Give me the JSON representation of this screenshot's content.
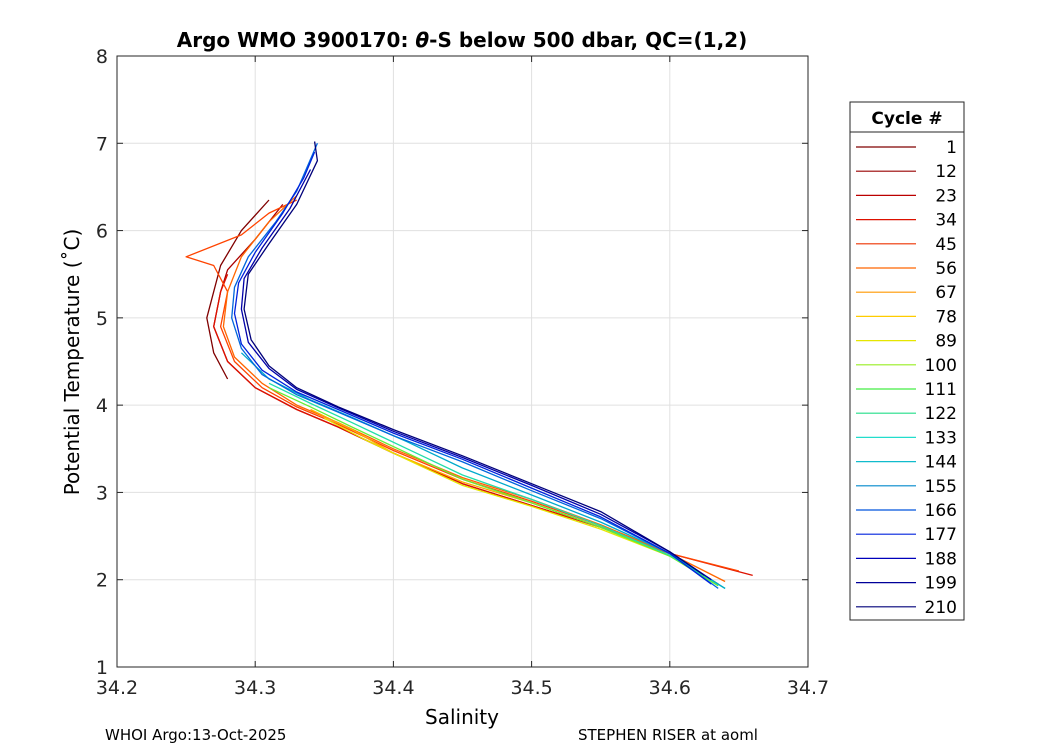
{
  "chart_data": {
    "type": "line",
    "title_prefix": "Argo WMO 3900170: ",
    "title_theta": "θ",
    "title_suffix": "-S below 500 dbar,  QC=(1,2)",
    "xlabel": "Salinity",
    "ylabel": "Potential Temperature (˚C)",
    "xlim": [
      34.2,
      34.7
    ],
    "ylim": [
      1,
      8
    ],
    "xticks": [
      "34.2",
      "34.3",
      "34.4",
      "34.5",
      "34.6",
      "34.7"
    ],
    "yticks": [
      "1",
      "2",
      "3",
      "4",
      "5",
      "6",
      "7",
      "8"
    ],
    "grid": true,
    "legend_placement": "right",
    "legend_title": "Cycle #",
    "legend": [
      {
        "label": "1",
        "color": "#800000"
      },
      {
        "label": "12",
        "color": "#990000"
      },
      {
        "label": "23",
        "color": "#bb0000"
      },
      {
        "label": "34",
        "color": "#dd1100"
      },
      {
        "label": "45",
        "color": "#ee3300"
      },
      {
        "label": "56",
        "color": "#ff6600"
      },
      {
        "label": "67",
        "color": "#ff9900"
      },
      {
        "label": "78",
        "color": "#ffcc00"
      },
      {
        "label": "89",
        "color": "#e6e600"
      },
      {
        "label": "100",
        "color": "#99ee22"
      },
      {
        "label": "111",
        "color": "#44ee44"
      },
      {
        "label": "122",
        "color": "#22dd88"
      },
      {
        "label": "133",
        "color": "#22ddcc"
      },
      {
        "label": "144",
        "color": "#11bbcc"
      },
      {
        "label": "155",
        "color": "#0088cc"
      },
      {
        "label": "166",
        "color": "#0055dd"
      },
      {
        "label": "177",
        "color": "#0022dd"
      },
      {
        "label": "188",
        "color": "#0000bb"
      },
      {
        "label": "199",
        "color": "#000099"
      },
      {
        "label": "210",
        "color": "#00007a"
      }
    ],
    "series": [
      {
        "color": "#800000",
        "points": [
          [
            34.28,
            4.3
          ],
          [
            34.27,
            4.6
          ],
          [
            34.265,
            5.0
          ],
          [
            34.27,
            5.3
          ],
          [
            34.275,
            5.6
          ],
          [
            34.29,
            6.0
          ],
          [
            34.31,
            6.35
          ]
        ]
      },
      {
        "color": "#aa0000",
        "points": [
          [
            34.635,
            1.95
          ],
          [
            34.6,
            2.3
          ],
          [
            34.55,
            2.6
          ],
          [
            34.5,
            2.85
          ],
          [
            34.45,
            3.1
          ],
          [
            34.4,
            3.45
          ],
          [
            34.36,
            3.75
          ],
          [
            34.33,
            3.95
          ],
          [
            34.3,
            4.2
          ],
          [
            34.28,
            4.5
          ],
          [
            34.27,
            4.9
          ],
          [
            34.275,
            5.3
          ],
          [
            34.28,
            5.55
          ],
          [
            34.3,
            5.9
          ],
          [
            34.32,
            6.3
          ]
        ]
      },
      {
        "color": "#dd1100",
        "points": [
          [
            34.66,
            2.05
          ],
          [
            34.6,
            2.3
          ],
          [
            34.55,
            2.6
          ],
          [
            34.5,
            2.85
          ],
          [
            34.45,
            3.1
          ],
          [
            34.4,
            3.45
          ],
          [
            34.36,
            3.75
          ],
          [
            34.33,
            3.95
          ],
          [
            34.3,
            4.2
          ],
          [
            34.28,
            4.5
          ],
          [
            34.27,
            4.9
          ],
          [
            34.275,
            5.3
          ],
          [
            34.28,
            5.5
          ]
        ]
      },
      {
        "color": "#ff4400",
        "points": [
          [
            34.65,
            2.1
          ],
          [
            34.6,
            2.3
          ],
          [
            34.55,
            2.62
          ],
          [
            34.5,
            2.9
          ],
          [
            34.45,
            3.15
          ],
          [
            34.4,
            3.48
          ],
          [
            34.36,
            3.78
          ],
          [
            34.33,
            3.98
          ],
          [
            34.305,
            4.2
          ],
          [
            34.285,
            4.5
          ],
          [
            34.275,
            4.9
          ],
          [
            34.28,
            5.3
          ],
          [
            34.27,
            5.6
          ],
          [
            34.25,
            5.7
          ],
          [
            34.29,
            5.95
          ],
          [
            34.31,
            6.2
          ],
          [
            34.33,
            6.35
          ]
        ]
      },
      {
        "color": "#ff6600",
        "points": [
          [
            34.64,
            1.98
          ],
          [
            34.6,
            2.3
          ],
          [
            34.55,
            2.63
          ],
          [
            34.5,
            2.92
          ],
          [
            34.45,
            3.17
          ],
          [
            34.4,
            3.5
          ],
          [
            34.36,
            3.8
          ],
          [
            34.33,
            4.0
          ],
          [
            34.305,
            4.25
          ],
          [
            34.285,
            4.55
          ],
          [
            34.277,
            4.9
          ],
          [
            34.28,
            5.3
          ],
          [
            34.29,
            5.7
          ],
          [
            34.31,
            6.1
          ],
          [
            34.33,
            6.4
          ]
        ]
      },
      {
        "color": "#ffaa00",
        "points": [
          [
            34.635,
            1.95
          ],
          [
            34.6,
            2.28
          ],
          [
            34.55,
            2.6
          ],
          [
            34.5,
            2.88
          ],
          [
            34.45,
            3.12
          ],
          [
            34.4,
            3.45
          ],
          [
            34.37,
            3.72
          ],
          [
            34.34,
            3.95
          ]
        ]
      },
      {
        "color": "#e6e600",
        "points": [
          [
            34.635,
            1.95
          ],
          [
            34.6,
            2.27
          ],
          [
            34.55,
            2.58
          ],
          [
            34.5,
            2.84
          ],
          [
            34.45,
            3.08
          ],
          [
            34.42,
            3.3
          ],
          [
            34.38,
            3.6
          ],
          [
            34.35,
            3.85
          ]
        ]
      },
      {
        "color": "#66ee33",
        "points": [
          [
            34.635,
            1.93
          ],
          [
            34.6,
            2.27
          ],
          [
            34.55,
            2.6
          ],
          [
            34.5,
            2.88
          ],
          [
            34.45,
            3.15
          ],
          [
            34.41,
            3.45
          ],
          [
            34.37,
            3.75
          ],
          [
            34.34,
            3.98
          ],
          [
            34.31,
            4.2
          ]
        ]
      },
      {
        "color": "#22ddaa",
        "points": [
          [
            34.64,
            1.9
          ],
          [
            34.6,
            2.28
          ],
          [
            34.55,
            2.62
          ],
          [
            34.5,
            2.92
          ],
          [
            34.45,
            3.2
          ],
          [
            34.41,
            3.5
          ],
          [
            34.37,
            3.8
          ],
          [
            34.34,
            4.02
          ],
          [
            34.31,
            4.25
          ]
        ]
      },
      {
        "color": "#00aacc",
        "points": [
          [
            34.64,
            1.9
          ],
          [
            34.6,
            2.3
          ],
          [
            34.55,
            2.66
          ],
          [
            34.5,
            2.97
          ],
          [
            34.45,
            3.28
          ],
          [
            34.41,
            3.58
          ],
          [
            34.37,
            3.86
          ],
          [
            34.34,
            4.06
          ],
          [
            34.31,
            4.3
          ],
          [
            34.29,
            4.6
          ]
        ]
      },
      {
        "color": "#0066dd",
        "points": [
          [
            34.635,
            1.9
          ],
          [
            34.6,
            2.3
          ],
          [
            34.55,
            2.7
          ],
          [
            34.5,
            3.02
          ],
          [
            34.45,
            3.35
          ],
          [
            34.4,
            3.65
          ],
          [
            34.36,
            3.92
          ],
          [
            34.33,
            4.12
          ],
          [
            34.305,
            4.35
          ],
          [
            34.29,
            4.65
          ],
          [
            34.283,
            5.0
          ],
          [
            34.285,
            5.35
          ],
          [
            34.295,
            5.7
          ],
          [
            34.315,
            6.1
          ],
          [
            34.33,
            6.45
          ],
          [
            34.345,
            7.0
          ]
        ]
      },
      {
        "color": "#0022dd",
        "points": [
          [
            34.63,
            1.95
          ],
          [
            34.6,
            2.3
          ],
          [
            34.55,
            2.72
          ],
          [
            34.5,
            3.05
          ],
          [
            34.45,
            3.38
          ],
          [
            34.4,
            3.68
          ],
          [
            34.36,
            3.95
          ],
          [
            34.33,
            4.15
          ],
          [
            34.305,
            4.4
          ],
          [
            34.29,
            4.7
          ],
          [
            34.285,
            5.05
          ],
          [
            34.288,
            5.4
          ],
          [
            34.3,
            5.75
          ],
          [
            34.32,
            6.2
          ],
          [
            34.335,
            6.6
          ],
          [
            34.343,
            6.9
          ]
        ]
      },
      {
        "color": "#0000aa",
        "points": [
          [
            34.63,
            2.0
          ],
          [
            34.6,
            2.32
          ],
          [
            34.55,
            2.75
          ],
          [
            34.5,
            3.08
          ],
          [
            34.45,
            3.4
          ],
          [
            34.4,
            3.7
          ],
          [
            34.36,
            3.97
          ],
          [
            34.33,
            4.18
          ],
          [
            34.31,
            4.42
          ],
          [
            34.295,
            4.72
          ],
          [
            34.29,
            5.1
          ],
          [
            34.292,
            5.45
          ],
          [
            34.305,
            5.8
          ],
          [
            34.325,
            6.25
          ],
          [
            34.34,
            6.7
          ]
        ]
      },
      {
        "color": "#00007a",
        "points": [
          [
            34.625,
            2.05
          ],
          [
            34.6,
            2.32
          ],
          [
            34.55,
            2.78
          ],
          [
            34.5,
            3.1
          ],
          [
            34.45,
            3.42
          ],
          [
            34.4,
            3.72
          ],
          [
            34.36,
            3.98
          ],
          [
            34.33,
            4.2
          ],
          [
            34.31,
            4.45
          ],
          [
            34.297,
            4.75
          ],
          [
            34.292,
            5.1
          ],
          [
            34.295,
            5.5
          ],
          [
            34.31,
            5.85
          ],
          [
            34.33,
            6.3
          ],
          [
            34.345,
            6.8
          ],
          [
            34.343,
            7.02
          ]
        ]
      }
    ]
  },
  "footer": {
    "left": "WHOI Argo:13-Oct-2025",
    "right": "STEPHEN RISER at aoml"
  }
}
